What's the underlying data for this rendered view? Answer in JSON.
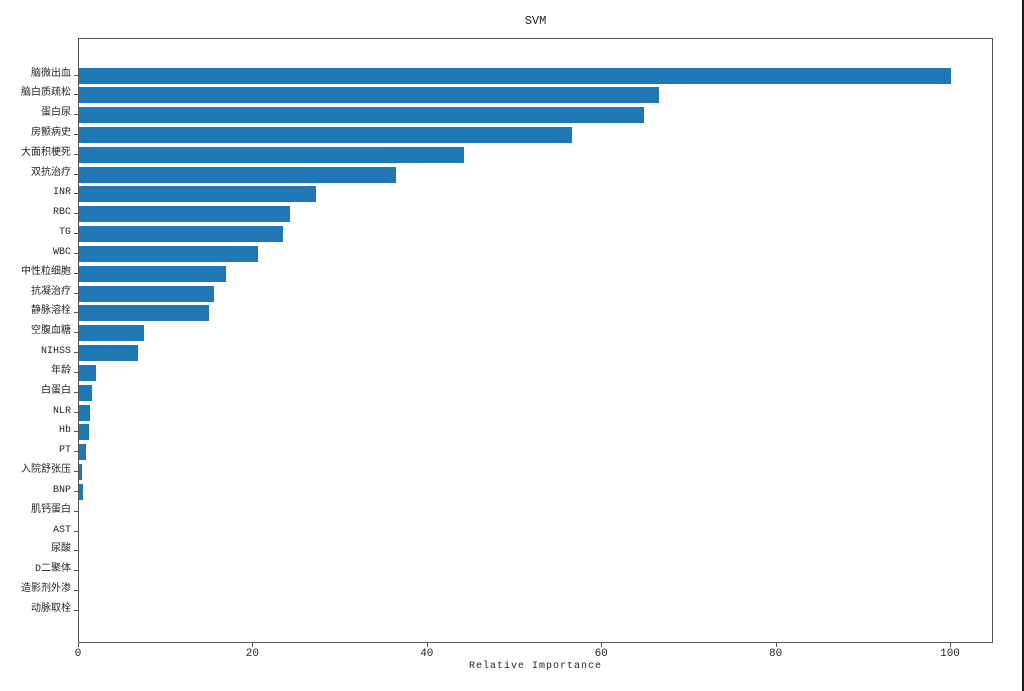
{
  "figure": {
    "background_color": "#ffffff",
    "right_border_color": "#1c1c1c"
  },
  "chart_data": {
    "type": "bar",
    "orientation": "horizontal",
    "title": "SVM",
    "xlabel": "Relative Importance",
    "ylabel": "",
    "bar_color": "#1f77b4",
    "axis_color": "#555555",
    "text_color": "#262626",
    "grid": false,
    "legend": "none",
    "xlim": [
      0,
      104.9
    ],
    "xticks": [
      0,
      20,
      40,
      60,
      80,
      100
    ],
    "categories": [
      "脑微出血",
      "脑白质疏松",
      "蛋白尿",
      "房颤病史",
      "大面积梗死",
      "双抗治疗",
      "INR",
      "RBC",
      "TG",
      "WBC",
      "中性粒细胞",
      "抗凝治疗",
      "静脉溶栓",
      "空腹血糖",
      "NIHSS",
      "年龄",
      "白蛋白",
      "NLR",
      "Hb",
      "PT",
      "入院舒张压",
      "BNP",
      "肌钙蛋白",
      "AST",
      "尿酸",
      "D二聚体",
      "造影剂外渗",
      "动脉取栓"
    ],
    "values": [
      100,
      66.5,
      64.8,
      56.5,
      44.1,
      36.3,
      27.2,
      24.2,
      23.4,
      20.5,
      16.9,
      15.5,
      14.9,
      7.5,
      6.8,
      1.9,
      1.5,
      1.3,
      1.1,
      0.85,
      0.35,
      0.45,
      0,
      0,
      0,
      0,
      0,
      0
    ]
  }
}
